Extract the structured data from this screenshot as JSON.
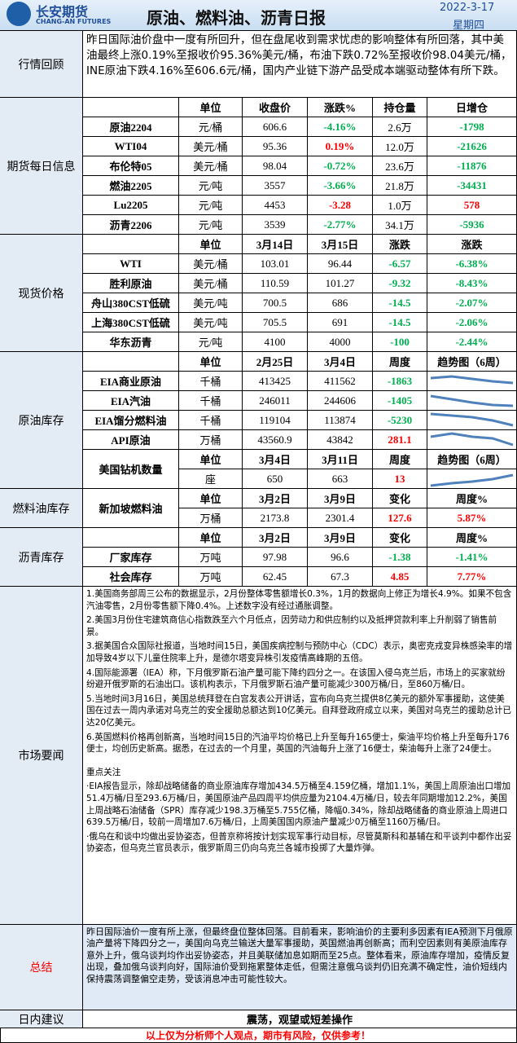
{
  "header": {
    "logo_cn": "长安期货",
    "logo_en": "CHANG-AN FUTURES",
    "title": "原油、燃料油、沥青日报",
    "date": "2022-3-17",
    "weekday": "星期四"
  },
  "review": {
    "label": "行情回顾",
    "text": "昨日国际油价盘中一度有所回升，但在盘尾收到需求忧虑的影响整体有所回落，其中美油最终上涨0.19%至报收价95.36%美元/桶，布油下跌0.72%至报收价98.04美元/桶，INE原油下跌4.16%至606.6元/桶，国内产业链下游产品受成本端驱动整体有所下跌。"
  },
  "futures": {
    "label": "期货每日信息",
    "header": [
      "单位",
      "收盘价",
      "涨跌%",
      "持仓量",
      "日增仓"
    ],
    "rows": [
      {
        "cells": [
          "原油2204",
          "元/桶",
          "606.6",
          "-4.16%",
          "2.6万",
          "-1798"
        ],
        "colors": [
          "#00b050",
          "#00b050"
        ]
      },
      {
        "cells": [
          "WTI04",
          "美元/桶",
          "95.36",
          "0.19%",
          "12.0万",
          "-21626"
        ],
        "colors": [
          "#ff0000",
          "#00b050"
        ]
      },
      {
        "cells": [
          "布伦特05",
          "美元/桶",
          "98.04",
          "-0.72%",
          "23.6万",
          "-11876"
        ],
        "colors": [
          "#00b050",
          "#00b050"
        ]
      },
      {
        "cells": [
          "燃油2205",
          "元/吨",
          "3557",
          "-3.66%",
          "21.8万",
          "-34431"
        ],
        "colors": [
          "#00b050",
          "#00b050"
        ]
      },
      {
        "cells": [
          "Lu2205",
          "元/吨",
          "4453",
          "-3.28",
          "1.0万",
          "578"
        ],
        "colors": [
          "#ff0000",
          "#ff0000"
        ]
      },
      {
        "cells": [
          "沥青2206",
          "元/吨",
          "3539",
          "-2.77%",
          "34.1万",
          "-5936"
        ],
        "colors": [
          "#00b050",
          "#00b050"
        ]
      }
    ]
  },
  "spot": {
    "label": "现货价格",
    "header": [
      "单位",
      "3月14日",
      "3月15日",
      "涨跌",
      "涨跌"
    ],
    "rows": [
      {
        "cells": [
          "WTI",
          "美元/桶",
          "103.01",
          "96.44",
          "-6.57",
          "-6.38%"
        ],
        "colors": [
          "#00b050",
          "#00b050"
        ]
      },
      {
        "cells": [
          "胜利原油",
          "美元/桶",
          "110.59",
          "101.27",
          "-9.32",
          "-8.43%"
        ],
        "colors": [
          "#00b050",
          "#00b050"
        ]
      },
      {
        "cells": [
          "舟山380CST低硫",
          "美元/吨",
          "700.5",
          "686",
          "-14.5",
          "-2.07%"
        ],
        "colors": [
          "#00b050",
          "#00b050"
        ]
      },
      {
        "cells": [
          "上海380CST低硫",
          "美元/吨",
          "705.5",
          "691",
          "-14.5",
          "-2.06%"
        ],
        "colors": [
          "#00b050",
          "#00b050"
        ]
      },
      {
        "cells": [
          "华东沥青",
          "元/吨",
          "4100",
          "4000",
          "-100",
          "-2.44%"
        ],
        "colors": [
          "#00b050",
          "#00b050"
        ]
      }
    ]
  },
  "crude": {
    "label": "原油库存",
    "header": [
      "单位",
      "2月25日",
      "3月4日",
      "周度",
      "趋势图（6周）"
    ],
    "rows": [
      {
        "cells": [
          "EIA商业原油",
          "千桶",
          "413425",
          "411562",
          "-1863"
        ],
        "colors": [
          "#00b050"
        ]
      },
      {
        "cells": [
          "EIA汽油",
          "千桶",
          "246011",
          "244606",
          "-1405"
        ],
        "colors": [
          "#00b050"
        ]
      },
      {
        "cells": [
          "EIA馏分燃料油",
          "千桶",
          "119104",
          "113874",
          "-5230"
        ],
        "colors": [
          "#00b050"
        ]
      },
      {
        "cells": [
          "API原油",
          "万桶",
          "43560.9",
          "43842",
          "281.1"
        ],
        "colors": [
          "#ff0000"
        ]
      }
    ],
    "rig": {
      "name": "美国钻机数量",
      "header": [
        "单位",
        "3月4日",
        "3月11日",
        "周度",
        "趋势图（6周）"
      ],
      "cells": [
        "座",
        "650",
        "663",
        "13"
      ],
      "colors": [
        "#ff0000"
      ]
    }
  },
  "fuel": {
    "label": "燃料油库存",
    "name": "新加坡燃料油",
    "header": [
      "单位",
      "3月2日",
      "3月9日",
      "变化",
      "周度%"
    ],
    "cells": [
      "万桶",
      "2173.8",
      "2301.4",
      "127.6",
      "5.87%"
    ],
    "colors": [
      "#ff0000",
      "#ff0000"
    ]
  },
  "asphalt": {
    "label": "沥青库存",
    "header": [
      "单位",
      "3月2日",
      "3月9日",
      "变化",
      "周度%"
    ],
    "rows": [
      {
        "cells": [
          "厂家库存",
          "万吨",
          "97.98",
          "96.6",
          "-1.38",
          "-1.41%"
        ],
        "colors": [
          "#00b050",
          "#00b050"
        ]
      },
      {
        "cells": [
          "社会库存",
          "万吨",
          "62.45",
          "67.3",
          "4.85",
          "7.77%"
        ],
        "colors": [
          "#ff0000",
          "#ff0000"
        ]
      }
    ]
  },
  "news": {
    "label": "市场要闻",
    "paragraphs": [
      "1.美国商务部周三公布的数据显示，2月份整体零售额增长0.3%，1月的数据向上修正为增长4.9%。如果不包含汽油零售，2月份零售额下降0.4%。上述数字没有经过通胀调整。",
      "2.美国3月份住宅建筑商信心指数跌至六个月低点，因劳动力和供应制约以及抵押贷款利率上升削弱了销售前景。",
      "3.据美国合众国际社报道，当地时间15日，美国疾病控制与预防中心（CDC）表示，奥密克戎变异株感染率的增加导致4岁以下儿童住院率上升，是德尔塔变异株引发疫情高峰期的五倍。",
      "4.国际能源署（IEA）称，下月俄罗斯石油产量可能下降约四分之一。在该国入侵乌克兰后，市场上的买家就纷纷避开俄罗斯的石油出口。该机构表示，下月俄罗斯石油产量可能减少300万桶/日，至860万桶/日。",
      "5.当地时间3月16日，美国总统拜登在白宫发表公开讲话，宣布向乌克兰提供8亿美元的额外军事援助，这使美国在过去一周内承诺对乌克兰的安全援助总额达到10亿美元。自拜登政府成立以来，美国对乌克兰的援助总计已达20亿美元。",
      "6.英国燃料价格再创新高，当地时间15日的汽油平均价格已上升至每升165便士，柴油平均价格上升至每升176便士，均创历史新高。据悉，在过去的一个月里，英国的汽油每升上涨了16便士，柴油每升上涨了24便士。"
    ],
    "focus_title": "重点关注",
    "focus": [
      "·EIA报告显示，除却战略储备的商业原油库存增加434.5万桶至4.159亿桶，增加1.1%，美国上周原油出口增加51.4万桶/日至293.6万桶/日，美国原油产品四周平均供应量为2104.4万桶/日，较去年同期增加12.2%，美国上周战略石油储备（SPR）库存减少198.3万桶至5.755亿桶，降幅0.34%，除却战略储备的商业原油上周进口639.5万桶/日，较前一周增加7.6万桶/日，上周美国国内原油产量减少0万桶至1160万桶/日。",
      "·俄乌在和谈中均做出妥协姿态，但普京称将按计划实现军事行动目标，尽管莫斯科和基辅在和平谈判中都作出妥协姿态，但乌克兰官员表示，俄罗斯周三仍向乌克兰各城市投掷了大量炸弹。"
    ]
  },
  "summary": {
    "label": "总结",
    "text": "昨日国际油价一度有所上涨，但最终盘位整体回落。目前看来，影响油价的主要利多因素有IEA预测下月俄原油产量将下降四分之一，美国向乌克兰输送大量军事援助，英国燃油再创新高；而利空因素则有美原油库存意外上升，俄乌谈判均作出妥协姿态，并且美联储加息如期而至25点。整体看来，原油库存增加，疫情反复出现，叠加俄乌谈判向好，国际油价受到拖累整体走低，但需注意俄乌谈判仍旧充满不确定性，油价短线内保持震荡调整偏空走势，受该消息冲击可能性较大。"
  },
  "advice": {
    "label": "日内建议",
    "text": "震荡，观望或短差操作"
  },
  "footer": "以上仅为分析师个人观点，期市有风险，仅供参考！"
}
